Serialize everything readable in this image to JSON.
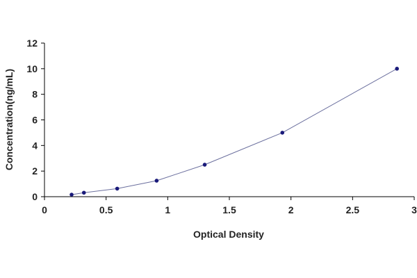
{
  "chart_data": {
    "type": "scatter",
    "title": "",
    "xlabel": "Optical Density",
    "ylabel": "Concentration(ng/mL)",
    "xlim": [
      0,
      3
    ],
    "ylim": [
      0,
      12
    ],
    "x_ticks": [
      0,
      0.5,
      1,
      1.5,
      2,
      2.5,
      3
    ],
    "x_tick_labels": [
      "0",
      "0.5",
      "1",
      "1.5",
      "2",
      "2.5",
      "3"
    ],
    "y_ticks": [
      0,
      2,
      4,
      6,
      8,
      10,
      12
    ],
    "y_tick_labels": [
      "0",
      "2",
      "4",
      "6",
      "8",
      "10",
      "12"
    ],
    "grid": false,
    "legend": "none",
    "series": [
      {
        "x": [
          0.22,
          0.32,
          0.59,
          0.91,
          1.3,
          1.93,
          2.86
        ],
        "y": [
          0.16,
          0.31,
          0.63,
          1.25,
          2.5,
          5,
          10
        ],
        "marker_color": "#1a1a7a",
        "fit_line": true,
        "line_color": "#6b6f9e"
      }
    ]
  }
}
